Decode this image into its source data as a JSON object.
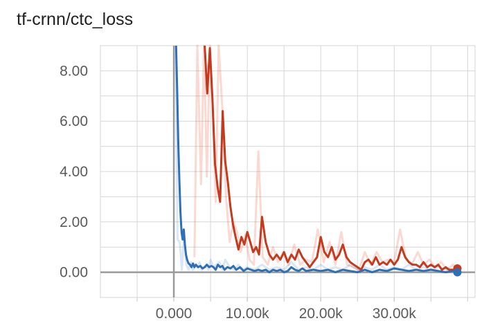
{
  "chart_data": {
    "type": "line",
    "title": "tf-crnn/ctc_loss",
    "xlabel": "",
    "ylabel": "",
    "xlim": [
      -10000,
      41000
    ],
    "ylim": [
      -1.0,
      9.0
    ],
    "grid": true,
    "x_ticks": [
      {
        "value": 0,
        "label": "0.000"
      },
      {
        "value": 10000,
        "label": "10.00k"
      },
      {
        "value": 20000,
        "label": "20.00k"
      },
      {
        "value": 30000,
        "label": "30.00k"
      }
    ],
    "y_ticks": [
      {
        "value": 0,
        "label": "0.00"
      },
      {
        "value": 2,
        "label": "2.00"
      },
      {
        "value": 4,
        "label": "4.00"
      },
      {
        "value": 6,
        "label": "6.00"
      },
      {
        "value": 8,
        "label": "8.00"
      }
    ],
    "series": [
      {
        "color": "#e3522d",
        "smoothed_color": "#c33b1f",
        "raw": {
          "x": [
            2800,
            3200,
            3700,
            4100,
            4500,
            4900,
            5300,
            5700,
            6100,
            6600,
            7100,
            7600,
            8100,
            8600,
            9100,
            9700,
            10300,
            10900,
            11500,
            12100,
            12800,
            13500,
            14200,
            14900,
            15600,
            16400,
            17200,
            18000,
            18800,
            19600,
            20400,
            21200,
            22000,
            22800,
            23600,
            24400,
            25200,
            26000,
            26800,
            27600,
            28400,
            29200,
            30000,
            30800,
            31600,
            32400,
            33200,
            34000,
            34800,
            35600,
            36400,
            37200,
            38000,
            38600
          ],
          "y": [
            0.6,
            9.5,
            3.5,
            9.5,
            3.8,
            9.5,
            6.5,
            2.8,
            9.5,
            6.5,
            3.0,
            1.2,
            2.0,
            1.6,
            0.8,
            1.5,
            0.5,
            0.3,
            4.8,
            0.6,
            0.3,
            1.0,
            0.4,
            0.8,
            0.3,
            1.1,
            0.3,
            0.5,
            0.4,
            1.7,
            0.4,
            1.2,
            0.3,
            1.6,
            0.3,
            0.2,
            0.1,
            0.8,
            0.3,
            0.8,
            0.4,
            0.5,
            0.4,
            1.7,
            0.5,
            0.3,
            0.8,
            0.3,
            0.5,
            0.2,
            0.4,
            0.1,
            0.3,
            0.1
          ]
        },
        "smoothed": {
          "x": [
            4200,
            4550,
            4900,
            5250,
            5600,
            5950,
            6300,
            6650,
            7000,
            7350,
            7700,
            8050,
            8400,
            8800,
            9200,
            9600,
            10000,
            10400,
            10800,
            11200,
            11600,
            12000,
            12500,
            13000,
            13500,
            14000,
            14500,
            15000,
            15500,
            16000,
            16500,
            17000,
            17500,
            18000,
            18500,
            19000,
            19500,
            20000,
            20500,
            21000,
            21500,
            22000,
            22500,
            23000,
            23500,
            24000,
            24500,
            25000,
            25500,
            26000,
            26500,
            27000,
            27500,
            28000,
            28500,
            29000,
            29500,
            30000,
            30500,
            31000,
            31500,
            32000,
            32500,
            33000,
            33500,
            34000,
            34500,
            35000,
            35500,
            36000,
            36500,
            37000,
            37500,
            38000,
            38600
          ],
          "y": [
            9.1,
            7.1,
            8.9,
            6.9,
            4.3,
            3.4,
            2.8,
            6.4,
            4.4,
            3.6,
            2.6,
            1.9,
            1.4,
            0.9,
            1.4,
            1.1,
            1.6,
            1.2,
            0.8,
            1.0,
            0.7,
            2.2,
            1.2,
            0.7,
            0.5,
            0.7,
            0.5,
            0.8,
            0.4,
            0.7,
            0.5,
            0.9,
            0.6,
            0.4,
            0.2,
            0.4,
            0.6,
            1.4,
            0.8,
            0.6,
            1.0,
            0.5,
            0.7,
            1.1,
            0.6,
            0.4,
            0.3,
            0.2,
            0.1,
            0.4,
            0.5,
            0.3,
            0.6,
            0.3,
            0.4,
            0.3,
            0.5,
            0.3,
            0.5,
            1.0,
            0.6,
            0.4,
            0.3,
            0.3,
            0.2,
            0.4,
            0.2,
            0.3,
            0.2,
            0.3,
            0.1,
            0.2,
            0.1,
            0.1,
            0.15
          ]
        }
      },
      {
        "color": "#4e8fd6",
        "smoothed_color": "#2f6fb5",
        "raw": {
          "x": [
            250,
            500,
            800,
            1100,
            1400,
            1700,
            2000,
            2300,
            2600,
            2900,
            3200,
            3500,
            3800,
            4100,
            4400,
            4700,
            5000,
            5400,
            5800,
            6200,
            6600,
            7000,
            7600,
            8200,
            8800,
            9400,
            10000,
            11000,
            12000,
            13000,
            14000,
            15000,
            16000,
            17000,
            18000,
            19000,
            20000,
            21000,
            22000,
            23000,
            24000,
            25000,
            26000,
            27000,
            28000,
            29000,
            30000,
            31000,
            32000,
            33000,
            34000,
            35000,
            36000,
            37000,
            38000
          ],
          "y": [
            9.5,
            1.3,
            1.2,
            0.1,
            1.6,
            0.3,
            0.1,
            0.4,
            0.1,
            0.3,
            0.2,
            0.4,
            0.1,
            0.2,
            0.3,
            0.1,
            0.5,
            0.2,
            0.3,
            0.4,
            0.1,
            0.5,
            0.2,
            0.1,
            0.3,
            0.1,
            0.2,
            0.1,
            0.3,
            0.1,
            0.2,
            0.1,
            0.4,
            0.1,
            0.2,
            0.1,
            0.3,
            0.1,
            0.2,
            0.1,
            0.3,
            0.1,
            0.2,
            0.1,
            0.3,
            0.1,
            0.2,
            0.1,
            0.3,
            0.1,
            0.2,
            0.1,
            0.2,
            0.1,
            0.1
          ]
        },
        "smoothed": {
          "x": [
            300,
            450,
            600,
            750,
            900,
            1050,
            1200,
            1350,
            1500,
            1650,
            1800,
            2000,
            2200,
            2400,
            2600,
            2800,
            3000,
            3300,
            3600,
            3900,
            4200,
            4500,
            4800,
            5100,
            5400,
            5700,
            6000,
            6300,
            6600,
            6900,
            7300,
            7700,
            8100,
            8500,
            9000,
            9500,
            10000,
            10500,
            11000,
            11500,
            12000,
            12500,
            13000,
            13500,
            14000,
            14500,
            15000,
            15500,
            16000,
            16500,
            17000,
            17500,
            18000,
            19000,
            20000,
            21000,
            22000,
            23000,
            24000,
            25000,
            26000,
            27000,
            28000,
            29000,
            30000,
            31000,
            32000,
            33000,
            34000,
            35000,
            36000,
            37000,
            38000,
            38600
          ],
          "y": [
            9.1,
            7.2,
            5.2,
            3.7,
            2.4,
            1.6,
            1.3,
            1.7,
            1.1,
            0.7,
            0.5,
            0.35,
            0.3,
            0.2,
            0.35,
            0.2,
            0.3,
            0.2,
            0.25,
            0.15,
            0.2,
            0.3,
            0.2,
            0.25,
            0.2,
            0.1,
            0.3,
            0.2,
            0.25,
            0.1,
            0.2,
            0.15,
            0.25,
            0.1,
            0.2,
            0.05,
            0.15,
            0.1,
            0.05,
            0.1,
            0.05,
            0.1,
            0.0,
            0.1,
            0.05,
            0.1,
            0.0,
            0.05,
            0.2,
            0.1,
            0.05,
            0.15,
            0.05,
            0.1,
            0.05,
            0.1,
            0.0,
            0.1,
            0.05,
            0.0,
            0.1,
            0.0,
            0.1,
            0.05,
            0.15,
            0.1,
            0.05,
            0.1,
            0.05,
            0.1,
            0.05,
            0.0,
            0.05,
            0.0
          ]
        }
      }
    ]
  }
}
